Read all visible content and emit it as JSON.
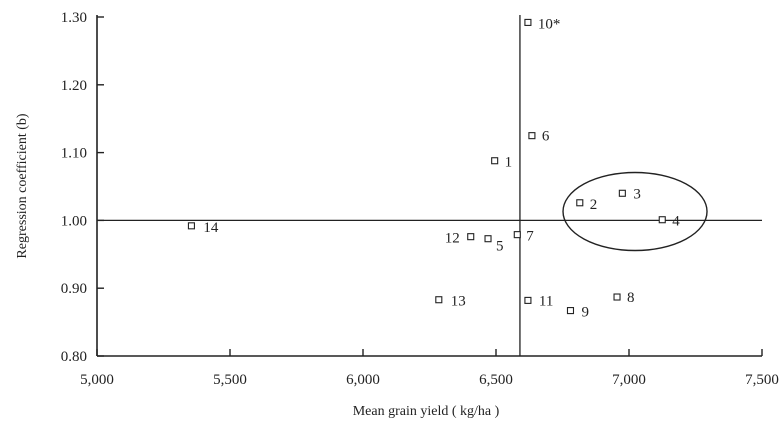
{
  "chart_data": {
    "type": "scatter",
    "title": "",
    "xlabel": "Mean grain yield ( kg/ha )",
    "ylabel": "Regression coefficient (b)",
    "xlim": [
      5000,
      7500
    ],
    "ylim": [
      0.8,
      1.3
    ],
    "x_ticks": [
      "5,000",
      "5,500",
      "6,000",
      "6,500",
      "7,000",
      "7,500"
    ],
    "x_tick_values": [
      5000,
      5500,
      6000,
      6500,
      7000,
      7500
    ],
    "y_ticks": [
      "0.80",
      "0.90",
      "1.00",
      "1.10",
      "1.20",
      "1.30"
    ],
    "y_tick_values": [
      0.8,
      0.9,
      1.0,
      1.1,
      1.2,
      1.3
    ],
    "reference_lines": {
      "mean_x": 6590,
      "b_equals": 1.0
    },
    "highlighted_group": [
      "2",
      "3",
      "4"
    ],
    "points": [
      {
        "label": "1",
        "x": 6495,
        "y": 1.088
      },
      {
        "label": "2",
        "x": 6815,
        "y": 1.026
      },
      {
        "label": "3",
        "x": 6975,
        "y": 1.04
      },
      {
        "label": "4",
        "x": 7125,
        "y": 1.001
      },
      {
        "label": "5",
        "x": 6470,
        "y": 0.973
      },
      {
        "label": "6",
        "x": 6635,
        "y": 1.125
      },
      {
        "label": "7",
        "x": 6580,
        "y": 0.979
      },
      {
        "label": "8",
        "x": 6955,
        "y": 0.887
      },
      {
        "label": "9",
        "x": 6780,
        "y": 0.867
      },
      {
        "label": "10*",
        "x": 6620,
        "y": 1.292
      },
      {
        "label": "11",
        "x": 6620,
        "y": 0.882
      },
      {
        "label": "12",
        "x": 6405,
        "y": 0.976
      },
      {
        "label": "13",
        "x": 6285,
        "y": 0.883
      },
      {
        "label": "14",
        "x": 5355,
        "y": 0.992
      }
    ]
  }
}
